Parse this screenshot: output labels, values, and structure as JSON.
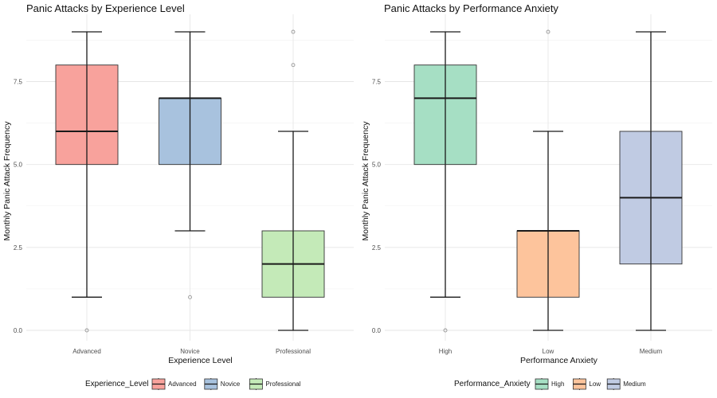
{
  "chart_data": [
    {
      "type": "box",
      "title": "Panic Attacks by Experience Level",
      "xlabel": "Experience Level",
      "ylabel": "Monthly Panic Attack Frequency",
      "ylim": [
        0,
        9
      ],
      "yticks": [
        "0.0",
        "2.5",
        "5.0",
        "7.5"
      ],
      "grid": true,
      "legend": {
        "title": "Experience_Level",
        "position": "bottom"
      },
      "categories": [
        "Advanced",
        "Novice",
        "Professional"
      ],
      "boxes": [
        {
          "name": "Advanced",
          "whisker_low": 1,
          "q1": 5,
          "median": 6,
          "q3": 8,
          "whisker_high": 9,
          "outliers": [
            0
          ],
          "color": "#F8A29C"
        },
        {
          "name": "Novice",
          "whisker_low": 3,
          "q1": 5,
          "median": 7,
          "q3": 7,
          "whisker_high": 9,
          "outliers": [
            1
          ],
          "color": "#A8C2DE"
        },
        {
          "name": "Professional",
          "whisker_low": 0,
          "q1": 1,
          "median": 2,
          "q3": 3,
          "whisker_high": 6,
          "outliers": [
            8,
            9
          ],
          "color": "#C4EAB8"
        }
      ]
    },
    {
      "type": "box",
      "title": "Panic Attacks by Performance Anxiety",
      "xlabel": "Performance Anxiety",
      "ylabel": "Monthly Panic Attack Frequency",
      "ylim": [
        0,
        9
      ],
      "yticks": [
        "0.0",
        "2.5",
        "5.0",
        "7.5"
      ],
      "grid": true,
      "legend": {
        "title": "Performance_Anxiety",
        "position": "bottom"
      },
      "categories": [
        "High",
        "Low",
        "Medium"
      ],
      "boxes": [
        {
          "name": "High",
          "whisker_low": 1,
          "q1": 5,
          "median": 7,
          "q3": 8,
          "whisker_high": 9,
          "outliers": [
            0
          ],
          "color": "#A6DFC4"
        },
        {
          "name": "Low",
          "whisker_low": 0,
          "q1": 1,
          "median": 3,
          "q3": 3,
          "whisker_high": 6,
          "outliers": [
            9
          ],
          "color": "#FDC49C"
        },
        {
          "name": "Medium",
          "whisker_low": 0,
          "q1": 2,
          "median": 4,
          "q3": 6,
          "whisker_high": 9,
          "outliers": [],
          "color": "#C0CBE3"
        }
      ]
    }
  ]
}
